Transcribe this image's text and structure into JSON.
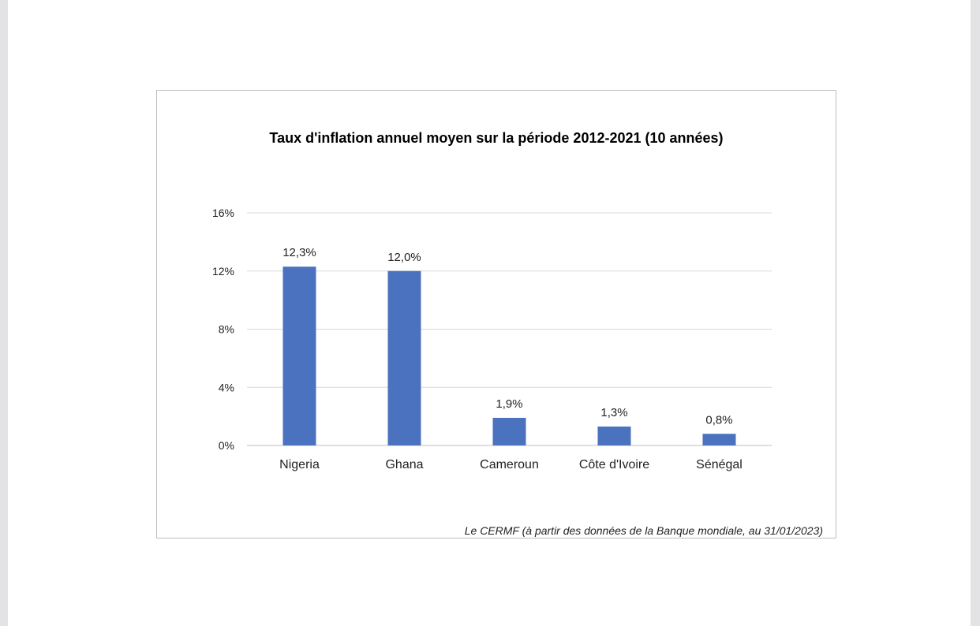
{
  "chart_data": {
    "type": "bar",
    "title": "Taux d'inflation annuel moyen sur la période 2012-2021  (10 années)",
    "categories": [
      "Nigeria",
      "Ghana",
      "Cameroun",
      "Côte d'Ivoire",
      "Sénégal"
    ],
    "values": [
      12.3,
      12.0,
      1.9,
      1.3,
      0.8
    ],
    "value_labels": [
      "12,3%",
      "12,0%",
      "1,9%",
      "1,3%",
      "0,8%"
    ],
    "yticks": [
      0,
      4,
      8,
      12,
      16
    ],
    "ytick_labels": [
      "0%",
      "4%",
      "8%",
      "12%",
      "16%"
    ],
    "ylim": [
      0,
      16
    ],
    "xlabel": "",
    "ylabel": "",
    "grid": true,
    "legend": "none",
    "bar_color": "#4a72be",
    "source": "Le CERMF (à partir des données de la Banque mondiale, au 31/01/2023)"
  }
}
